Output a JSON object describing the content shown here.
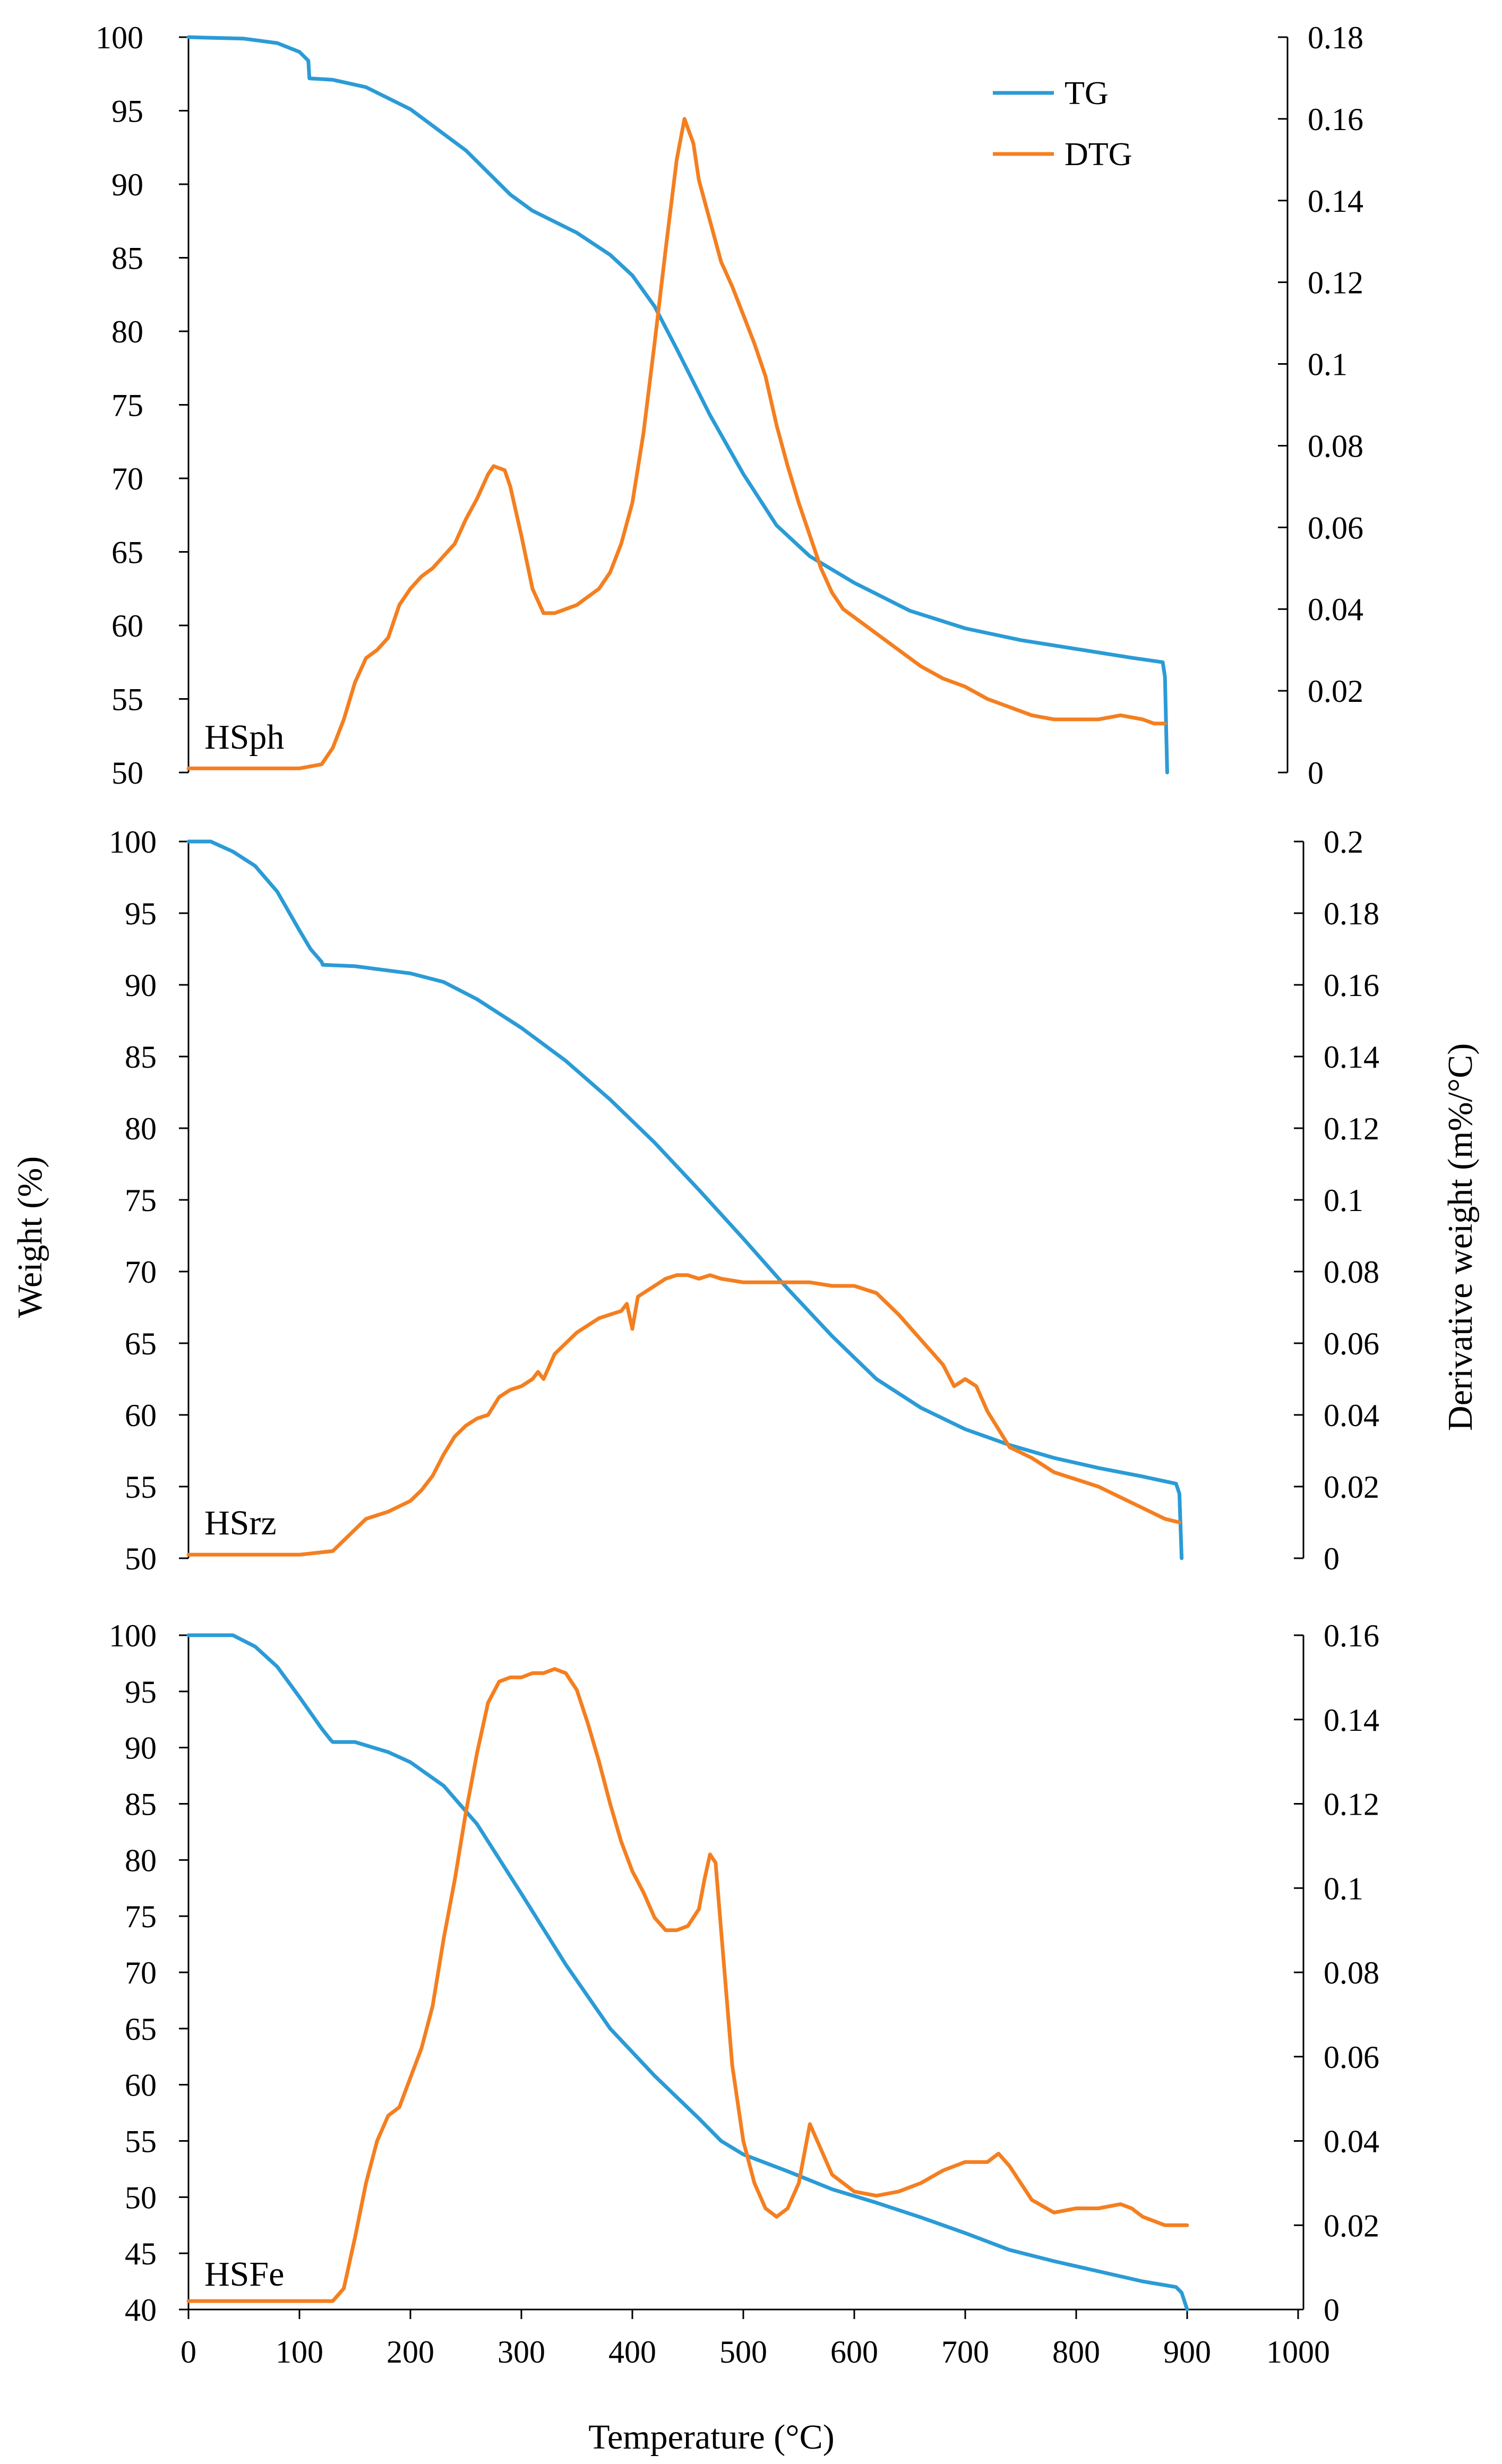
{
  "figure": {
    "ylabel_left": "Weight (%)",
    "ylabel_right": "Derivative weight (m%/°C)",
    "xlabel": "Temperature (°C)",
    "x_ticks": [
      "0",
      "100",
      "200",
      "300",
      "400",
      "500",
      "600",
      "700",
      "800",
      "900",
      "1000"
    ],
    "colors": {
      "tg": "#2b9bd6",
      "dtg": "#f47f20"
    }
  },
  "legend": {
    "tg_label": "TG",
    "dtg_label": "DTG"
  },
  "chart_data": [
    {
      "type": "line",
      "panel_label": "HSph",
      "title": "",
      "xlabel": "Temperature (°C)",
      "ylabel_left": "Weight (%)",
      "ylabel_right": "Derivative weight (m%/°C)",
      "legend": "top-right",
      "xlim": [
        0,
        1000
      ],
      "ylim_left": [
        50,
        100
      ],
      "ylim_right": [
        0,
        0.18
      ],
      "y_ticks_left": [
        "50",
        "55",
        "60",
        "65",
        "70",
        "75",
        "80",
        "85",
        "90",
        "95",
        "100"
      ],
      "y_ticks_right": [
        "0",
        "0.02",
        "0.04",
        "0.06",
        "0.08",
        "0.1",
        "0.12",
        "0.14",
        "0.16",
        "0.18"
      ],
      "series": [
        {
          "name": "TG",
          "axis": "left",
          "x": [
            0,
            50,
            80,
            100,
            108,
            109,
            130,
            160,
            200,
            250,
            290,
            310,
            350,
            380,
            400,
            420,
            440,
            470,
            500,
            530,
            560,
            600,
            650,
            700,
            750,
            800,
            850,
            878,
            880,
            882
          ],
          "y": [
            100,
            99.9,
            99.6,
            99.0,
            98.4,
            97.2,
            97.1,
            96.6,
            95.1,
            92.3,
            89.3,
            88.2,
            86.7,
            85.2,
            83.8,
            81.7,
            78.8,
            74.3,
            70.3,
            66.8,
            64.7,
            62.9,
            61.0,
            59.8,
            59.0,
            58.4,
            57.8,
            57.5,
            56.5,
            50
          ]
        },
        {
          "name": "DTG",
          "axis": "right",
          "x": [
            0,
            100,
            120,
            130,
            140,
            150,
            160,
            170,
            180,
            190,
            200,
            210,
            220,
            230,
            240,
            250,
            260,
            270,
            275,
            285,
            290,
            300,
            310,
            320,
            330,
            340,
            350,
            360,
            370,
            380,
            390,
            400,
            410,
            420,
            430,
            440,
            447,
            455,
            460,
            470,
            480,
            490,
            500,
            510,
            520,
            530,
            540,
            550,
            560,
            570,
            580,
            590,
            600,
            620,
            640,
            660,
            680,
            700,
            720,
            740,
            760,
            780,
            800,
            820,
            840,
            860,
            870,
            880
          ],
          "y": [
            0.001,
            0.001,
            0.002,
            0.006,
            0.013,
            0.022,
            0.028,
            0.03,
            0.033,
            0.041,
            0.045,
            0.048,
            0.05,
            0.053,
            0.056,
            0.062,
            0.067,
            0.073,
            0.075,
            0.074,
            0.07,
            0.058,
            0.045,
            0.039,
            0.039,
            0.04,
            0.041,
            0.043,
            0.045,
            0.049,
            0.056,
            0.066,
            0.083,
            0.105,
            0.128,
            0.15,
            0.16,
            0.154,
            0.145,
            0.135,
            0.125,
            0.119,
            0.112,
            0.105,
            0.097,
            0.085,
            0.075,
            0.066,
            0.058,
            0.05,
            0.044,
            0.04,
            0.038,
            0.034,
            0.03,
            0.026,
            0.023,
            0.021,
            0.018,
            0.016,
            0.014,
            0.013,
            0.013,
            0.013,
            0.014,
            0.013,
            0.012,
            0.012
          ]
        }
      ]
    },
    {
      "type": "line",
      "panel_label": "HSrz",
      "title": "",
      "xlabel": "Temperature (°C)",
      "ylabel_left": "Weight (%)",
      "ylabel_right": "Derivative weight (m%/°C)",
      "xlim": [
        0,
        1000
      ],
      "ylim_left": [
        50,
        100
      ],
      "ylim_right": [
        0,
        0.2
      ],
      "y_ticks_left": [
        "50",
        "55",
        "60",
        "65",
        "70",
        "75",
        "80",
        "85",
        "90",
        "95",
        "100"
      ],
      "y_ticks_right": [
        "0",
        "0.02",
        "0.04",
        "0.06",
        "0.08",
        "0.1",
        "0.12",
        "0.14",
        "0.16",
        "0.18",
        "0.2"
      ],
      "series": [
        {
          "name": "TG",
          "axis": "left",
          "x": [
            0,
            20,
            40,
            60,
            80,
            100,
            110,
            120,
            121,
            150,
            200,
            230,
            260,
            300,
            340,
            380,
            420,
            460,
            500,
            540,
            580,
            620,
            660,
            700,
            740,
            780,
            820,
            860,
            890,
            893,
            895
          ],
          "y": [
            100,
            100,
            99.3,
            98.3,
            96.5,
            93.8,
            92.5,
            91.6,
            91.4,
            91.3,
            90.8,
            90.2,
            89.0,
            87.0,
            84.7,
            82.0,
            79.0,
            75.7,
            72.3,
            68.8,
            65.5,
            62.5,
            60.5,
            59.0,
            57.9,
            57.0,
            56.3,
            55.7,
            55.2,
            54.5,
            50
          ]
        },
        {
          "name": "DTG",
          "axis": "right",
          "x": [
            0,
            100,
            130,
            140,
            150,
            160,
            170,
            180,
            200,
            210,
            220,
            230,
            240,
            250,
            260,
            270,
            280,
            290,
            300,
            310,
            315,
            320,
            330,
            340,
            350,
            360,
            370,
            380,
            390,
            395,
            400,
            405,
            410,
            420,
            430,
            440,
            450,
            460,
            470,
            480,
            500,
            520,
            540,
            560,
            580,
            600,
            620,
            640,
            660,
            680,
            690,
            700,
            710,
            720,
            740,
            760,
            780,
            800,
            820,
            840,
            860,
            880,
            893
          ],
          "y": [
            0.001,
            0.001,
            0.002,
            0.005,
            0.008,
            0.011,
            0.012,
            0.013,
            0.016,
            0.019,
            0.023,
            0.029,
            0.034,
            0.037,
            0.039,
            0.04,
            0.045,
            0.047,
            0.048,
            0.05,
            0.052,
            0.05,
            0.057,
            0.06,
            0.063,
            0.065,
            0.067,
            0.068,
            0.069,
            0.071,
            0.064,
            0.073,
            0.074,
            0.076,
            0.078,
            0.079,
            0.079,
            0.078,
            0.079,
            0.078,
            0.077,
            0.077,
            0.077,
            0.077,
            0.076,
            0.076,
            0.074,
            0.068,
            0.061,
            0.054,
            0.048,
            0.05,
            0.048,
            0.041,
            0.031,
            0.028,
            0.024,
            0.022,
            0.02,
            0.017,
            0.014,
            0.011,
            0.01
          ]
        }
      ]
    },
    {
      "type": "line",
      "panel_label": "HSFe",
      "title": "",
      "xlabel": "Temperature (°C)",
      "ylabel_left": "Weight (%)",
      "ylabel_right": "Derivative weight (m%/°C)",
      "xlim": [
        0,
        1000
      ],
      "ylim_left": [
        40,
        100
      ],
      "ylim_right": [
        0,
        0.16
      ],
      "y_ticks_left": [
        "40",
        "45",
        "50",
        "55",
        "60",
        "65",
        "70",
        "75",
        "80",
        "85",
        "90",
        "95",
        "100"
      ],
      "y_ticks_right": [
        "0",
        "0.02",
        "0.04",
        "0.06",
        "0.08",
        "0.1",
        "0.12",
        "0.14",
        "0.16"
      ],
      "series": [
        {
          "name": "TG",
          "axis": "left",
          "x": [
            0,
            40,
            60,
            80,
            100,
            120,
            128,
            130,
            150,
            180,
            200,
            230,
            260,
            300,
            340,
            380,
            420,
            460,
            480,
            500,
            540,
            580,
            620,
            660,
            700,
            740,
            780,
            820,
            860,
            890,
            895,
            900
          ],
          "y": [
            100,
            100,
            99.0,
            97.2,
            94.5,
            91.7,
            90.7,
            90.5,
            90.5,
            89.6,
            88.7,
            86.6,
            83.2,
            77.0,
            70.7,
            65.0,
            60.8,
            57.0,
            55.0,
            53.8,
            52.3,
            50.7,
            49.5,
            48.2,
            46.8,
            45.3,
            44.3,
            43.4,
            42.5,
            42.0,
            41.5,
            40
          ]
        },
        {
          "name": "DTG",
          "axis": "right",
          "x": [
            0,
            130,
            140,
            150,
            160,
            170,
            180,
            190,
            200,
            210,
            220,
            230,
            240,
            250,
            255,
            260,
            270,
            280,
            290,
            300,
            310,
            320,
            330,
            340,
            350,
            360,
            370,
            380,
            390,
            400,
            410,
            420,
            430,
            440,
            450,
            460,
            465,
            470,
            475,
            480,
            490,
            500,
            510,
            520,
            530,
            540,
            550,
            560,
            570,
            580,
            600,
            620,
            640,
            660,
            680,
            700,
            720,
            730,
            740,
            760,
            780,
            800,
            820,
            840,
            850,
            860,
            880,
            900
          ],
          "y": [
            0.002,
            0.002,
            0.005,
            0.017,
            0.03,
            0.04,
            0.046,
            0.048,
            0.055,
            0.062,
            0.072,
            0.088,
            0.102,
            0.118,
            0.125,
            0.132,
            0.144,
            0.149,
            0.15,
            0.15,
            0.151,
            0.151,
            0.152,
            0.151,
            0.147,
            0.139,
            0.13,
            0.12,
            0.111,
            0.104,
            0.099,
            0.093,
            0.09,
            0.09,
            0.091,
            0.095,
            0.102,
            0.108,
            0.106,
            0.09,
            0.058,
            0.04,
            0.03,
            0.024,
            0.022,
            0.024,
            0.03,
            0.044,
            0.038,
            0.032,
            0.028,
            0.027,
            0.028,
            0.03,
            0.033,
            0.035,
            0.035,
            0.037,
            0.034,
            0.026,
            0.023,
            0.024,
            0.024,
            0.025,
            0.024,
            0.022,
            0.02,
            0.02
          ]
        }
      ]
    }
  ]
}
